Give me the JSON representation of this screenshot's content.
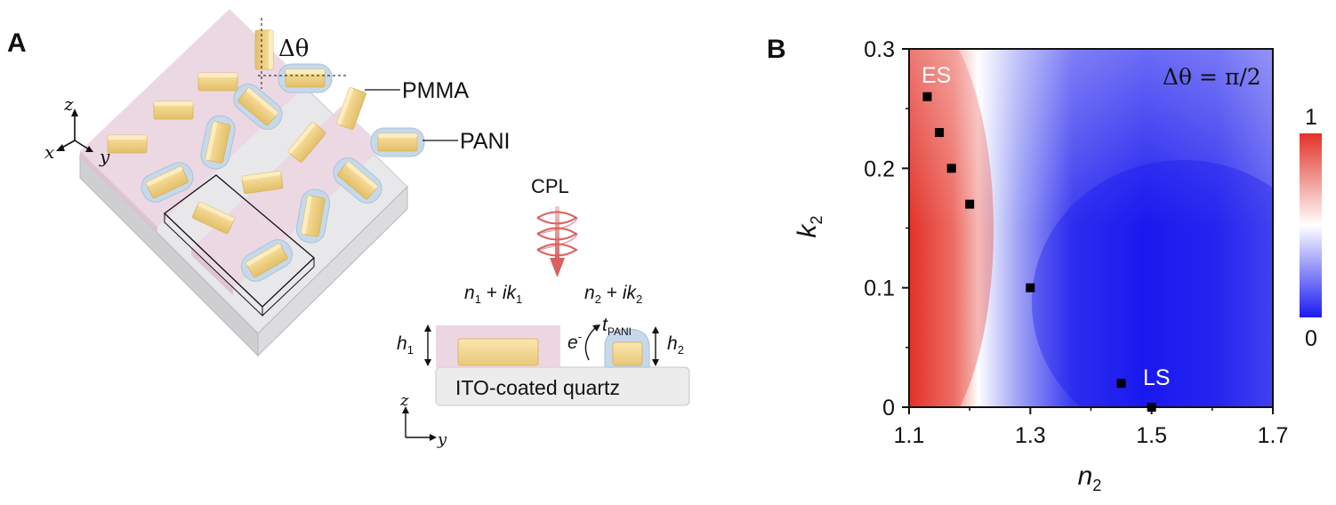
{
  "panel_a": {
    "label": "A",
    "delta_theta": "Δθ",
    "pmma_label": "PMMA",
    "pani_label": "PANI",
    "axes": {
      "z": "z",
      "x": "x",
      "y": "y"
    },
    "cpl_label": "CPL",
    "left_index": {
      "n": "n",
      "n_sub": "1",
      "plus": " + ",
      "ik": "ik",
      "k_sub": "1"
    },
    "right_index": {
      "n": "n",
      "n_sub": "2",
      "plus": " + ",
      "ik": "ik",
      "k_sub": "2"
    },
    "h1": {
      "main": "h",
      "sub": "1"
    },
    "h2": {
      "main": "h",
      "sub": "2"
    },
    "electron": {
      "main": "e",
      "sup": "-"
    },
    "t_pani": {
      "main": "t",
      "sub": "PANI"
    },
    "substrate_label": "ITO-coated quartz",
    "cross_axes": {
      "z": "z",
      "y": "y"
    }
  },
  "panel_b": {
    "label": "B",
    "annotation_es": "ES",
    "annotation_ls": "LS",
    "delta_label": "Δθ = π/2",
    "colorbar": {
      "max_label": "1",
      "min_label": "0",
      "colors": [
        "#e8302a",
        "#ffffff",
        "#2020ee"
      ]
    }
  },
  "chart_data": {
    "type": "heatmap",
    "title": "",
    "xlabel": {
      "main": "n",
      "sub": "2"
    },
    "ylabel": {
      "main": "k",
      "sub": "2"
    },
    "xlim": [
      1.1,
      1.7
    ],
    "ylim": [
      0,
      0.3
    ],
    "xticks": [
      1.1,
      1.3,
      1.5,
      1.7
    ],
    "xtick_labels": [
      "1.1",
      "1.3",
      "1.5",
      "1.7"
    ],
    "yticks": [
      0,
      0.1,
      0.2,
      0.3
    ],
    "ytick_labels": [
      "0",
      "0.1",
      "0.2",
      "0.3"
    ],
    "colorbar_range": [
      0,
      1
    ],
    "points": [
      {
        "x": 1.13,
        "y": 0.26
      },
      {
        "x": 1.15,
        "y": 0.23
      },
      {
        "x": 1.17,
        "y": 0.2
      },
      {
        "x": 1.2,
        "y": 0.17
      },
      {
        "x": 1.3,
        "y": 0.1
      },
      {
        "x": 1.45,
        "y": 0.02
      },
      {
        "x": 1.5,
        "y": 0
      }
    ]
  }
}
